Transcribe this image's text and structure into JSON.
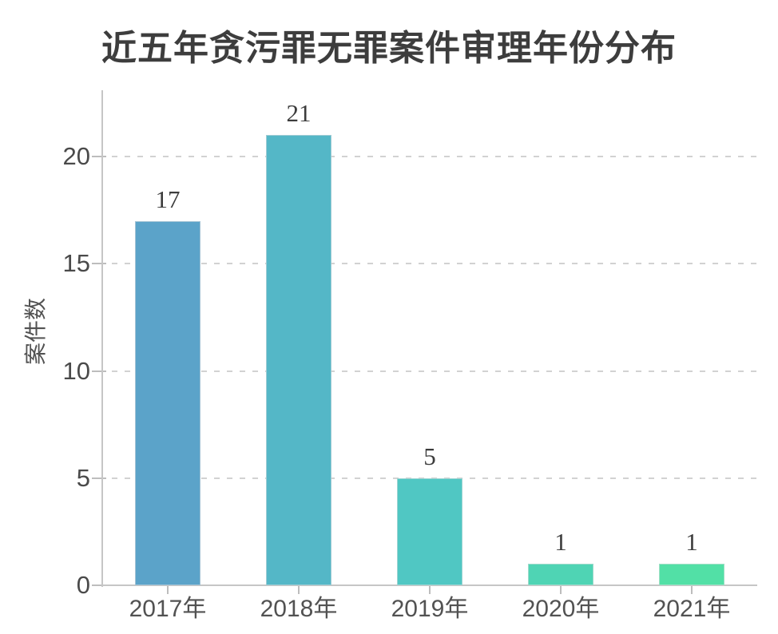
{
  "chart_data": {
    "type": "bar",
    "title": "近五年贪污罪无罪案件审理年份分布",
    "ylabel": "案件数",
    "xlabel": "",
    "categories": [
      "2017年",
      "2018年",
      "2019年",
      "2020年",
      "2021年"
    ],
    "values": [
      17,
      21,
      5,
      1,
      1
    ],
    "value_labels": [
      "17",
      "21",
      "5",
      "1",
      "1"
    ],
    "bar_colors": [
      "#5ba3c9",
      "#54b7c7",
      "#50c7c3",
      "#4fd4b4",
      "#52e0a6"
    ],
    "ylim": [
      0,
      23
    ],
    "yticks": [
      0,
      5,
      10,
      15,
      20
    ],
    "grid": "horizontal-dashed",
    "legend_position": "none",
    "colors": {
      "axis": "#c6c6c6",
      "grid": "#d2d2d2",
      "tick_text": "#4a4a4a",
      "title_text": "#3d3d3d",
      "value_text": "#3c3c3c",
      "background": "#ffffff"
    }
  }
}
